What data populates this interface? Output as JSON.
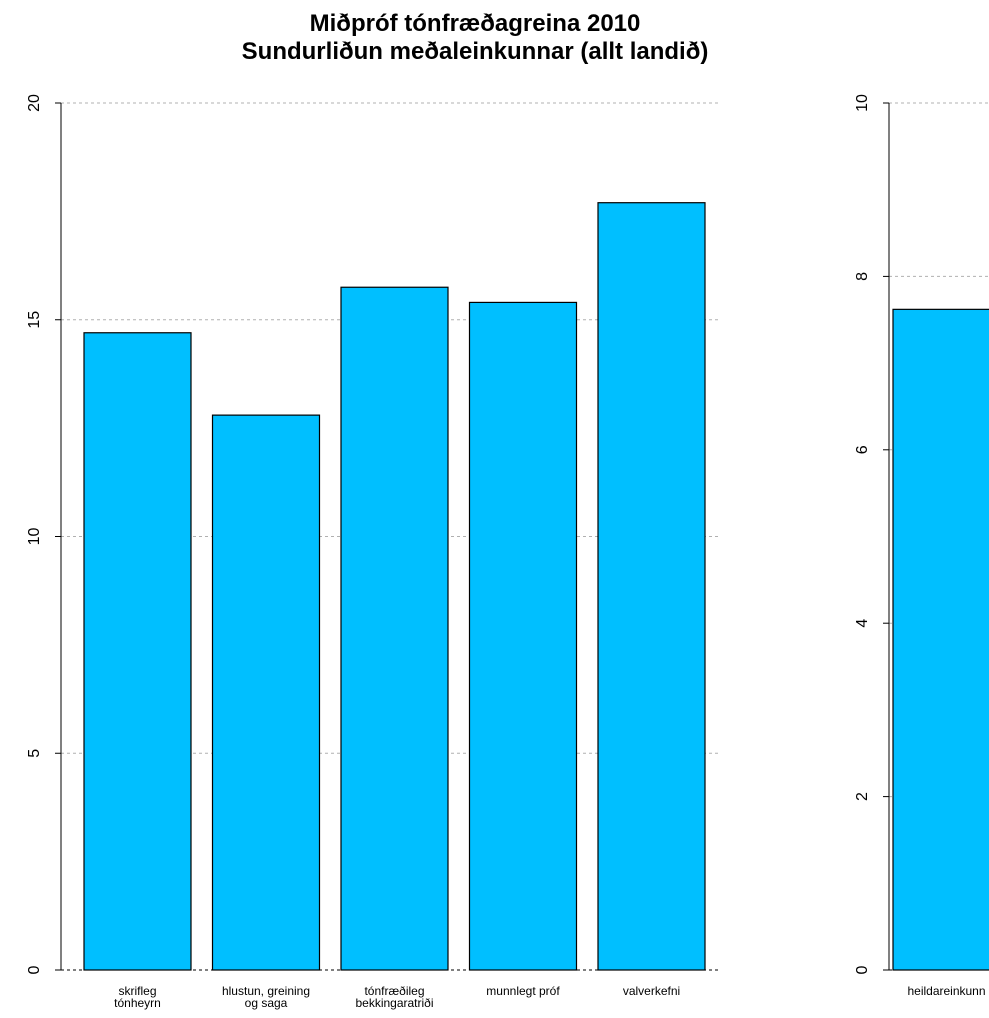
{
  "chart_data": [
    {
      "type": "bar",
      "title": [
        "Miðpróf tónfræðagreina 2010",
        "Sundurliðun meðaleinkunnar (allt landið)"
      ],
      "categories": [
        [
          "skrifleg",
          "tónheyrn"
        ],
        [
          "hlustun, greining",
          "og saga"
        ],
        [
          "tónfræðileg",
          "bekkingaratriði"
        ],
        [
          "munnlegt próf"
        ],
        [
          "valverkefni"
        ]
      ],
      "values": [
        14.7,
        12.8,
        15.75,
        15.4,
        17.7
      ],
      "ylim": [
        0,
        20
      ],
      "yticks": [
        0,
        5,
        10,
        15,
        20
      ],
      "grid": true,
      "bar_color": "#00bfff"
    },
    {
      "type": "bar",
      "categories": [
        [
          "heildareinkunn"
        ]
      ],
      "values": [
        7.62
      ],
      "ylim": [
        0,
        10
      ],
      "yticks": [
        0,
        2,
        4,
        6,
        8,
        10
      ],
      "grid": true,
      "bar_color": "#00bfff"
    }
  ]
}
